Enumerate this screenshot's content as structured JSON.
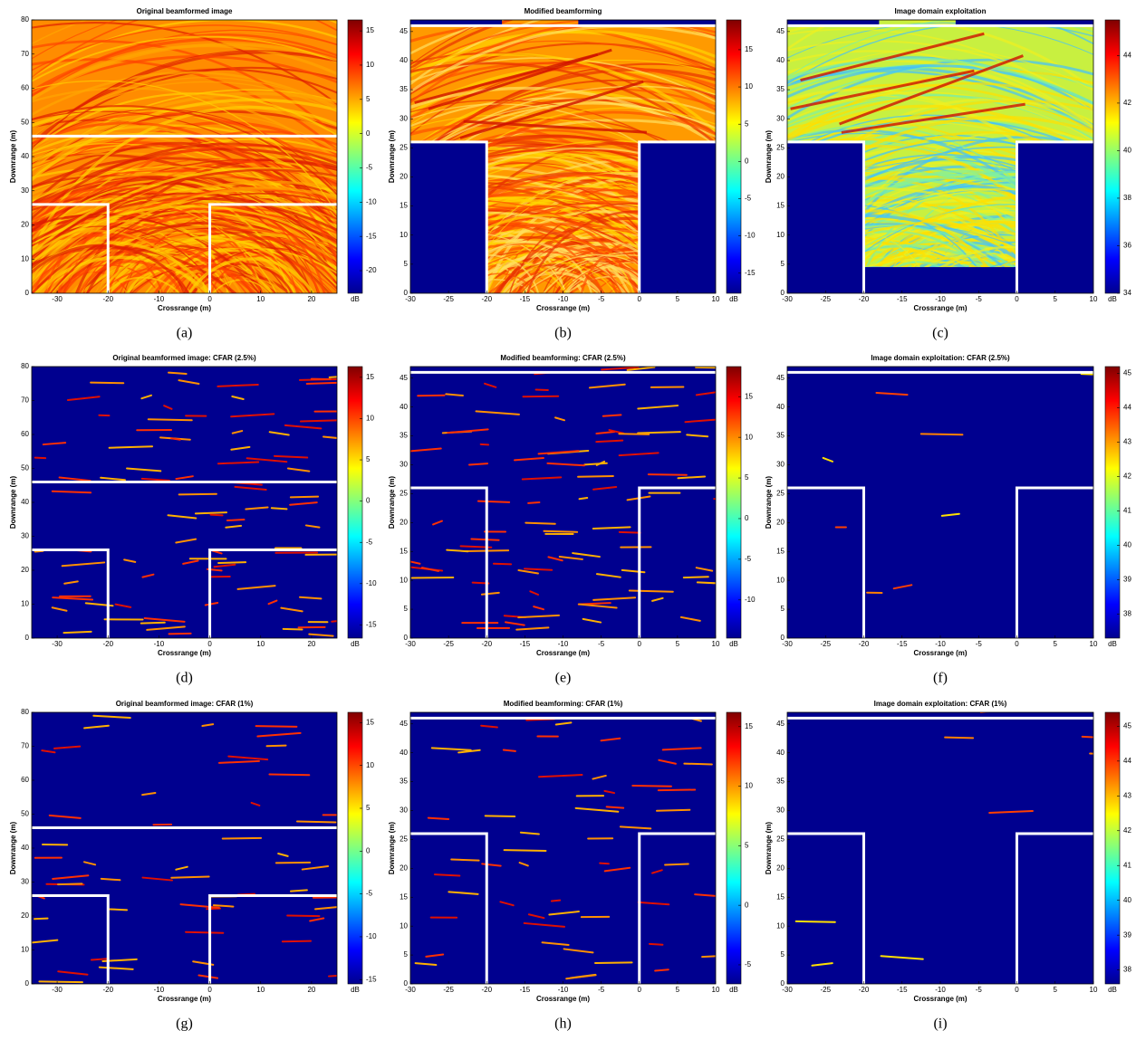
{
  "chart_data": [
    {
      "type": "heatmap",
      "title": "Original beamformed image",
      "xlabel": "Crossrange (m)",
      "ylabel": "Downrange (m)",
      "caption": "(a)",
      "xlim": [
        -35,
        25
      ],
      "xticks": [
        -30,
        -20,
        -10,
        0,
        10,
        20
      ],
      "ylim": [
        0,
        80
      ],
      "yticks": [
        0,
        10,
        20,
        30,
        40,
        50,
        60,
        70,
        80
      ],
      "colorbar": {
        "label": "dB",
        "lim": [
          -23.3,
          16.6
        ],
        "ticks": [
          15,
          10,
          5,
          0,
          -5,
          -10,
          -15,
          -20
        ]
      },
      "masks": [],
      "walls": [
        [
          [
            -35,
            46
          ],
          [
            25,
            46
          ]
        ],
        [
          [
            -35,
            26
          ],
          [
            -20,
            26
          ],
          [
            -20,
            0
          ]
        ],
        [
          [
            0,
            0
          ],
          [
            0,
            26
          ],
          [
            25,
            26
          ]
        ]
      ]
    },
    {
      "type": "heatmap",
      "title": "Modified beamforming",
      "xlabel": "Crossrange (m)",
      "ylabel": "Downrange (m)",
      "caption": "(b)",
      "xlim": [
        -30,
        10
      ],
      "xticks": [
        -30,
        -25,
        -20,
        -15,
        -10,
        -5,
        0,
        5,
        10
      ],
      "ylim": [
        0,
        47
      ],
      "yticks": [
        0,
        5,
        10,
        15,
        20,
        25,
        30,
        35,
        40,
        45
      ],
      "colorbar": {
        "label": "dB",
        "lim": [
          -17.7,
          19
        ],
        "ticks": [
          15,
          10,
          5,
          0,
          -5,
          -10,
          -15
        ]
      },
      "masks": [
        [
          -30,
          0,
          -20,
          26
        ],
        [
          0,
          0,
          10,
          26
        ],
        [
          -30,
          46,
          -18,
          47
        ],
        [
          -8,
          46,
          10,
          47
        ]
      ],
      "walls": [
        [
          [
            -30,
            46
          ],
          [
            10,
            46
          ]
        ],
        [
          [
            -30,
            26
          ],
          [
            -20,
            26
          ],
          [
            -20,
            0
          ]
        ],
        [
          [
            0,
            0
          ],
          [
            0,
            26
          ],
          [
            10,
            26
          ]
        ]
      ]
    },
    {
      "type": "heatmap",
      "title": "Image domain exploitation",
      "xlabel": "Crossrange (m)",
      "ylabel": "Downrange (m)",
      "caption": "(c)",
      "xlim": [
        -30,
        10
      ],
      "xticks": [
        -30,
        -25,
        -20,
        -15,
        -10,
        -5,
        0,
        5,
        10
      ],
      "ylim": [
        0,
        47
      ],
      "yticks": [
        0,
        5,
        10,
        15,
        20,
        25,
        30,
        35,
        40,
        45
      ],
      "colorbar": {
        "label": "dB",
        "lim": [
          34,
          45.5
        ],
        "ticks": [
          44,
          42,
          40,
          38,
          36,
          34
        ]
      },
      "masks": [
        [
          -30,
          0,
          -20,
          26
        ],
        [
          0,
          0,
          10,
          26
        ],
        [
          -20,
          0,
          0,
          4.5
        ],
        [
          -30,
          46,
          -18,
          47
        ],
        [
          -8,
          46,
          10,
          47
        ]
      ],
      "walls": [
        [
          [
            -30,
            46
          ],
          [
            10,
            46
          ]
        ],
        [
          [
            -30,
            26
          ],
          [
            -20,
            26
          ],
          [
            -20,
            0
          ]
        ],
        [
          [
            0,
            0
          ],
          [
            0,
            26
          ],
          [
            10,
            26
          ]
        ]
      ]
    },
    {
      "type": "heatmap",
      "title": "Original beamformed image: CFAR (2.5%)",
      "xlabel": "Crossrange (m)",
      "ylabel": "Downrange (m)",
      "caption": "(d)",
      "xlim": [
        -35,
        25
      ],
      "xticks": [
        -30,
        -20,
        -10,
        0,
        10,
        20
      ],
      "ylim": [
        0,
        80
      ],
      "yticks": [
        0,
        10,
        20,
        30,
        40,
        50,
        60,
        70,
        80
      ],
      "colorbar": {
        "label": "dB",
        "lim": [
          -16.6,
          16.3
        ],
        "ticks": [
          15,
          10,
          5,
          0,
          -5,
          -10,
          -15
        ]
      },
      "masks": [],
      "walls": [
        [
          [
            -35,
            46
          ],
          [
            25,
            46
          ]
        ],
        [
          [
            -35,
            26
          ],
          [
            -20,
            26
          ],
          [
            -20,
            0
          ]
        ],
        [
          [
            0,
            0
          ],
          [
            0,
            26
          ],
          [
            25,
            26
          ]
        ]
      ]
    },
    {
      "type": "heatmap",
      "title": "Modified beamforming: CFAR (2.5%)",
      "xlabel": "Crossrange (m)",
      "ylabel": "Downrange (m)",
      "caption": "(e)",
      "xlim": [
        -30,
        10
      ],
      "xticks": [
        -30,
        -25,
        -20,
        -15,
        -10,
        -5,
        0,
        5,
        10
      ],
      "ylim": [
        0,
        47
      ],
      "yticks": [
        0,
        5,
        10,
        15,
        20,
        25,
        30,
        35,
        40,
        45
      ],
      "colorbar": {
        "label": "dB",
        "lim": [
          -14.7,
          18.7
        ],
        "ticks": [
          15,
          10,
          5,
          0,
          -5,
          -10
        ]
      },
      "masks": [],
      "walls": [
        [
          [
            -30,
            46
          ],
          [
            10,
            46
          ]
        ],
        [
          [
            -30,
            26
          ],
          [
            -20,
            26
          ],
          [
            -20,
            0
          ]
        ],
        [
          [
            0,
            0
          ],
          [
            0,
            26
          ],
          [
            10,
            26
          ]
        ]
      ]
    },
    {
      "type": "heatmap",
      "title": "Image domain exploitation: CFAR (2.5%)",
      "xlabel": "Crossrange (m)",
      "ylabel": "Downrange (m)",
      "caption": "(f)",
      "xlim": [
        -30,
        10
      ],
      "xticks": [
        -30,
        -25,
        -20,
        -15,
        -10,
        -5,
        0,
        5,
        10
      ],
      "ylim": [
        0,
        47
      ],
      "yticks": [
        0,
        5,
        10,
        15,
        20,
        25,
        30,
        35,
        40,
        45
      ],
      "colorbar": {
        "label": "dB",
        "lim": [
          37.3,
          45.2
        ],
        "ticks": [
          45,
          44,
          43,
          42,
          41,
          40,
          39,
          38
        ]
      },
      "masks": [],
      "walls": [
        [
          [
            -30,
            46
          ],
          [
            10,
            46
          ]
        ],
        [
          [
            -30,
            26
          ],
          [
            -20,
            26
          ],
          [
            -20,
            0
          ]
        ],
        [
          [
            0,
            0
          ],
          [
            0,
            26
          ],
          [
            10,
            26
          ]
        ]
      ]
    },
    {
      "type": "heatmap",
      "title": "Original beamformed image: CFAR (1%)",
      "xlabel": "Crossrange (m)",
      "ylabel": "Downrange (m)",
      "caption": "(g)",
      "xlim": [
        -35,
        25
      ],
      "xticks": [
        -30,
        -20,
        -10,
        0,
        10,
        20
      ],
      "ylim": [
        0,
        80
      ],
      "yticks": [
        0,
        10,
        20,
        30,
        40,
        50,
        60,
        70,
        80
      ],
      "colorbar": {
        "label": "dB",
        "lim": [
          -15.5,
          16.2
        ],
        "ticks": [
          15,
          10,
          5,
          0,
          -5,
          -10,
          -15
        ]
      },
      "masks": [],
      "walls": [
        [
          [
            -35,
            46
          ],
          [
            25,
            46
          ]
        ],
        [
          [
            -35,
            26
          ],
          [
            -20,
            26
          ],
          [
            -20,
            0
          ]
        ],
        [
          [
            0,
            0
          ],
          [
            0,
            26
          ],
          [
            25,
            26
          ]
        ]
      ]
    },
    {
      "type": "heatmap",
      "title": "Modified beamforming: CFAR (1%)",
      "xlabel": "Crossrange (m)",
      "ylabel": "Downrange (m)",
      "caption": "(h)",
      "xlim": [
        -30,
        10
      ],
      "xticks": [
        -30,
        -25,
        -20,
        -15,
        -10,
        -5,
        0,
        5,
        10
      ],
      "ylim": [
        0,
        47
      ],
      "yticks": [
        0,
        5,
        10,
        15,
        20,
        25,
        30,
        35,
        40,
        45
      ],
      "colorbar": {
        "label": "dB",
        "lim": [
          -6.6,
          16.2
        ],
        "ticks": [
          15,
          10,
          5,
          0,
          -5
        ]
      },
      "masks": [],
      "walls": [
        [
          [
            -30,
            46
          ],
          [
            10,
            46
          ]
        ],
        [
          [
            -30,
            26
          ],
          [
            -20,
            26
          ],
          [
            -20,
            0
          ]
        ],
        [
          [
            0,
            0
          ],
          [
            0,
            26
          ],
          [
            10,
            26
          ]
        ]
      ]
    },
    {
      "type": "heatmap",
      "title": "Image domain exploitation: CFAR (1%)",
      "xlabel": "Crossrange (m)",
      "ylabel": "Downrange (m)",
      "caption": "(i)",
      "xlim": [
        -30,
        10
      ],
      "xticks": [
        -30,
        -25,
        -20,
        -15,
        -10,
        -5,
        0,
        5,
        10
      ],
      "ylim": [
        0,
        47
      ],
      "yticks": [
        0,
        5,
        10,
        15,
        20,
        25,
        30,
        35,
        40,
        45
      ],
      "colorbar": {
        "label": "dB",
        "lim": [
          37.6,
          45.4
        ],
        "ticks": [
          45,
          44,
          43,
          42,
          41,
          40,
          39,
          38
        ]
      },
      "masks": [],
      "walls": [
        [
          [
            -30,
            46
          ],
          [
            10,
            46
          ]
        ],
        [
          [
            -30,
            26
          ],
          [
            -20,
            26
          ],
          [
            -20,
            0
          ]
        ],
        [
          [
            0,
            0
          ],
          [
            0,
            26
          ],
          [
            10,
            26
          ]
        ]
      ]
    }
  ]
}
